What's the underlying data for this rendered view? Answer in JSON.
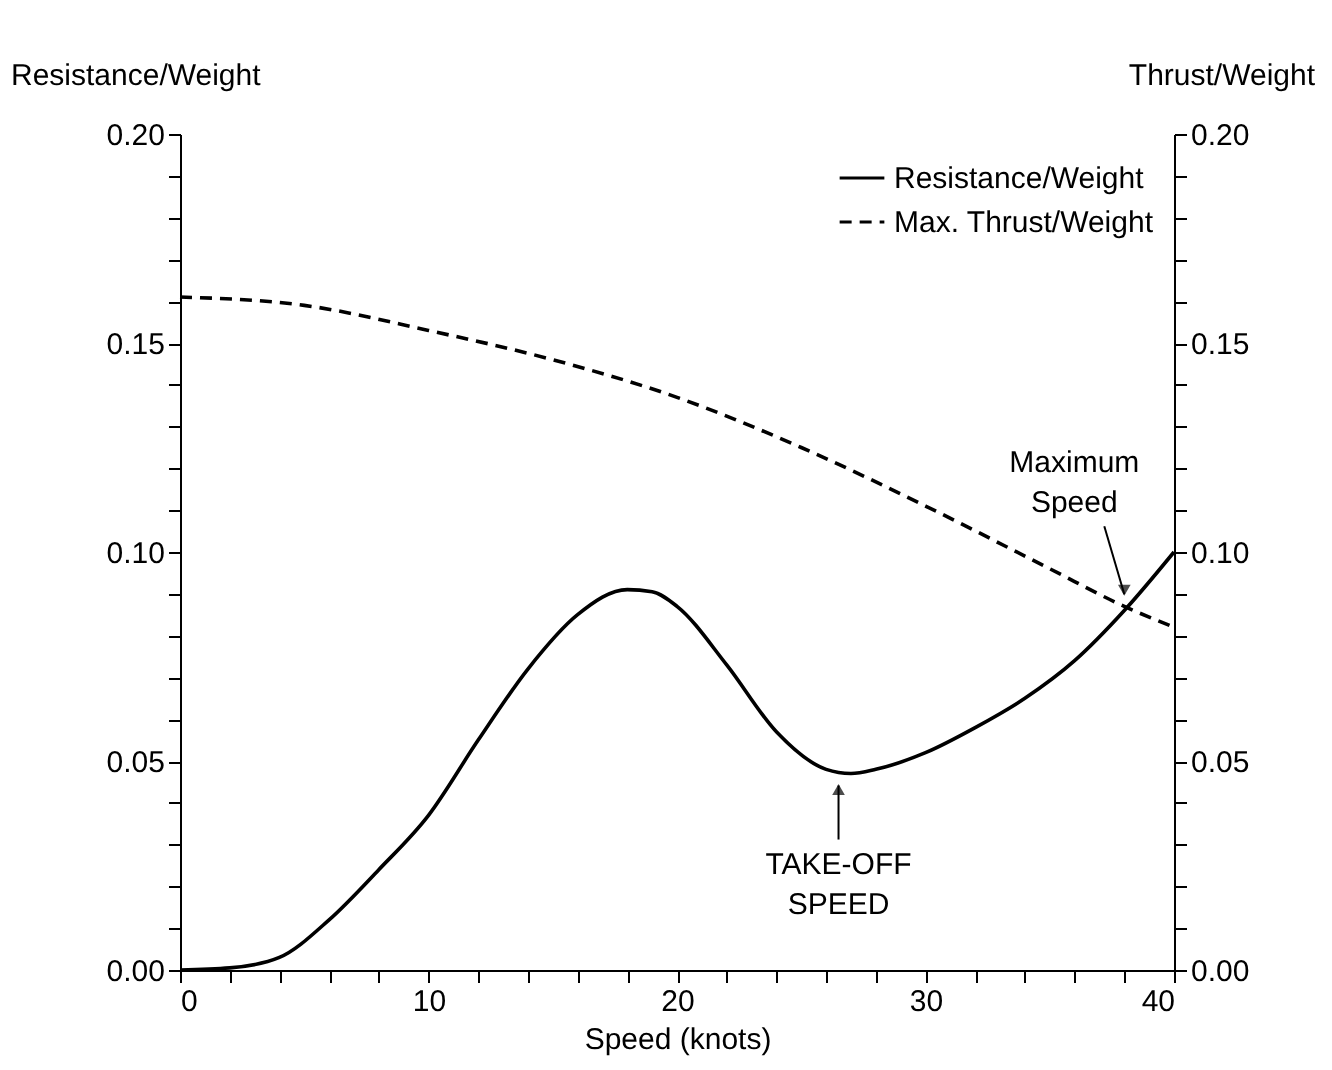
{
  "chart_data": {
    "type": "line",
    "xlabel": "Speed (knots)",
    "ylabel": "Resistance/Weight",
    "y2label": "Thrust/Weight",
    "xlim": [
      0,
      40
    ],
    "xticks": [
      0,
      {
        "value": 2,
        "label": null
      },
      {
        "value": 4,
        "label": null
      },
      {
        "value": 6,
        "label": null
      },
      {
        "value": 8,
        "label": null
      },
      10,
      {
        "value": 12,
        "label": null
      },
      {
        "value": 14,
        "label": null
      },
      {
        "value": 16,
        "label": null
      },
      {
        "value": 18,
        "label": null
      },
      20,
      {
        "value": 22,
        "label": null
      },
      {
        "value": 24,
        "label": null
      },
      {
        "value": 26,
        "label": null
      },
      {
        "value": 28,
        "label": null
      },
      30,
      {
        "value": 32,
        "label": null
      },
      {
        "value": 34,
        "label": null
      },
      {
        "value": 36,
        "label": null
      },
      {
        "value": 38,
        "label": null
      },
      40
    ],
    "ylim": [
      0,
      0.2
    ],
    "yticks": [
      {
        "value": 0,
        "label": "0.00"
      },
      {
        "value": 0.01,
        "label": null
      },
      {
        "value": 0.02,
        "label": null
      },
      {
        "value": 0.03,
        "label": null
      },
      {
        "value": 0.04,
        "label": null
      },
      {
        "value": 0.05,
        "label": "0.05"
      },
      {
        "value": 0.06,
        "label": null
      },
      {
        "value": 0.07,
        "label": null
      },
      {
        "value": 0.08,
        "label": null
      },
      {
        "value": 0.09,
        "label": null
      },
      {
        "value": 0.1,
        "label": "0.10"
      },
      {
        "value": 0.11,
        "label": null
      },
      {
        "value": 0.12,
        "label": null
      },
      {
        "value": 0.13,
        "label": null
      },
      {
        "value": 0.14,
        "label": null
      },
      {
        "value": 0.15,
        "label": "0.15"
      },
      {
        "value": 0.16,
        "label": null
      },
      {
        "value": 0.17,
        "label": null
      },
      {
        "value": 0.18,
        "label": null
      },
      {
        "value": 0.19,
        "label": null
      },
      {
        "value": 0.2,
        "label": "0.20"
      }
    ],
    "y2lim": [
      0,
      0.2
    ],
    "y2ticks": [
      {
        "value": 0,
        "label": "0.00"
      },
      {
        "value": 0.01,
        "label": null
      },
      {
        "value": 0.02,
        "label": null
      },
      {
        "value": 0.03,
        "label": null
      },
      {
        "value": 0.04,
        "label": null
      },
      {
        "value": 0.05,
        "label": "0.05"
      },
      {
        "value": 0.06,
        "label": null
      },
      {
        "value": 0.07,
        "label": null
      },
      {
        "value": 0.08,
        "label": null
      },
      {
        "value": 0.09,
        "label": null
      },
      {
        "value": 0.1,
        "label": "0.10"
      },
      {
        "value": 0.11,
        "label": null
      },
      {
        "value": 0.12,
        "label": null
      },
      {
        "value": 0.13,
        "label": null
      },
      {
        "value": 0.14,
        "label": null
      },
      {
        "value": 0.15,
        "label": "0.15"
      },
      {
        "value": 0.16,
        "label": null
      },
      {
        "value": 0.17,
        "label": null
      },
      {
        "value": 0.18,
        "label": null
      },
      {
        "value": 0.19,
        "label": null
      },
      {
        "value": 0.2,
        "label": "0.20"
      }
    ],
    "grid": false,
    "legend": "top right",
    "marker": "none",
    "series": [
      {
        "name": "Resistance/Weight",
        "color": "#000000",
        "line_style": "solid",
        "x": [
          0,
          2,
          4,
          6,
          8,
          10,
          12,
          14,
          16,
          18,
          19,
          20,
          22,
          24,
          26,
          27,
          28,
          30,
          32,
          34,
          36,
          38,
          40
        ],
        "values": [
          0,
          0.0005,
          0.003,
          0.012,
          0.024,
          0.037,
          0.055,
          0.072,
          0.085,
          0.091,
          0.0905,
          0.087,
          0.073,
          0.057,
          0.048,
          0.047,
          0.048,
          0.052,
          0.058,
          0.065,
          0.074,
          0.086,
          0.1
        ]
      },
      {
        "name": "Max. Thrust/Weight",
        "color": "#000000",
        "line_style": "dashed",
        "axis": "y2",
        "x": [
          0,
          5,
          10,
          15,
          20,
          25,
          30,
          35,
          38,
          40
        ],
        "values": [
          0.161,
          0.159,
          0.153,
          0.146,
          0.137,
          0.125,
          0.111,
          0.096,
          0.087,
          0.082
        ]
      }
    ],
    "annotations": [
      {
        "text": "Maximum\nSpeed",
        "x": 38,
        "y": 0.087
      },
      {
        "text": "TAKE-OFF\nSPEED",
        "x": 26.5,
        "y": 0.047
      }
    ]
  }
}
